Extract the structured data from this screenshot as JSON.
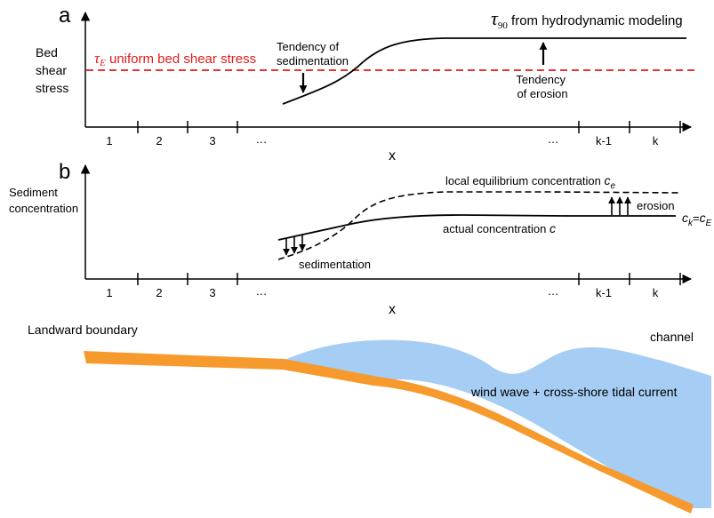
{
  "panel_a": {
    "label": "a",
    "ylabel_lines": [
      "Bed",
      "shear",
      "stress"
    ],
    "tau_e_symbol": "τ",
    "tau_e_sub": "E",
    "tau_e_text": " uniform bed shear stress",
    "tau90_symbol": "τ",
    "tau90_sub": "90",
    "tau90_text": " from hydrodynamic modeling",
    "sed_lines": [
      "Tendency of",
      "sedimentation"
    ],
    "ero_lines": [
      "Tendency",
      "of erosion"
    ],
    "ticks": [
      "1",
      "2",
      "3",
      "…",
      "…",
      "k-1",
      "k"
    ],
    "xlabel": "x",
    "colors": {
      "tau_e_line": "#e41a1c",
      "curve": "#000000"
    }
  },
  "panel_b": {
    "label": "b",
    "ylabel_lines": [
      "Sediment",
      "concentration"
    ],
    "ce_label_text": "local equilibrium concentration ",
    "ce_symbol": "c",
    "ce_sub": "e",
    "actual_text": "actual concentration ",
    "actual_symbol": "c",
    "erosion": "erosion",
    "sedimentation": "sedimentation",
    "ck_c": "c",
    "ck_sub": "k",
    "ck_eq": "=",
    "ck_c2": "c",
    "ck_sub2": "E",
    "ticks": [
      "1",
      "2",
      "3",
      "…",
      "…",
      "k-1",
      "k"
    ],
    "xlabel": "x"
  },
  "panel_c": {
    "landward": "Landward boundary",
    "channel": "channel",
    "forcing": "wind wave + cross-shore tidal current",
    "colors": {
      "water": "#a6cdf3",
      "bed": "#f79a2e"
    }
  }
}
